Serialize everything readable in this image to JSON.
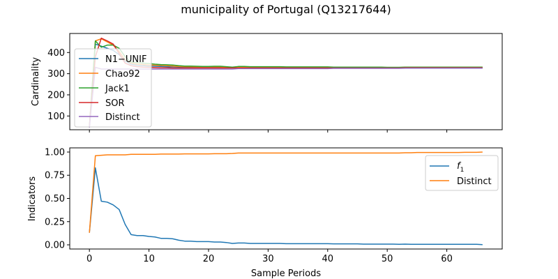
{
  "chart_data": {
    "type": "line",
    "title": "municipality of Portugal (Q13217644)",
    "xlabel": "Sample Periods",
    "xlim": [
      -3.3,
      69.3
    ],
    "xticks": [
      0,
      10,
      20,
      30,
      40,
      50,
      60
    ],
    "x": [
      0,
      1,
      2,
      3,
      4,
      5,
      6,
      7,
      8,
      9,
      10,
      11,
      12,
      13,
      14,
      15,
      16,
      17,
      18,
      19,
      20,
      21,
      22,
      23,
      24,
      25,
      26,
      27,
      28,
      29,
      30,
      31,
      32,
      33,
      34,
      35,
      36,
      37,
      38,
      39,
      40,
      41,
      42,
      43,
      44,
      45,
      46,
      47,
      48,
      49,
      50,
      51,
      52,
      53,
      54,
      55,
      56,
      57,
      58,
      59,
      60,
      61,
      62,
      63,
      64,
      65,
      66
    ],
    "panels": [
      {
        "ylabel": "Cardinality",
        "ylim": [
          35,
          490
        ],
        "yticks": [
          100,
          200,
          300,
          400
        ],
        "legend_position": "left",
        "series": [
          {
            "name": "N1−UNIF",
            "color": "#1f77b4",
            "values": [
              50,
              440,
              430,
              420,
              410,
              390,
              360,
              345,
              340,
              338,
              336,
              335,
              334,
              333,
              332,
              331,
              330,
              330,
              329,
              329,
              329,
              329,
              329,
              328,
              328,
              329,
              329,
              329,
              329,
              329,
              329,
              329,
              329,
              328,
              328,
              328,
              328,
              328,
              328,
              328,
              328,
              328,
              327,
              327,
              327,
              327,
              327,
              327,
              327,
              327,
              327,
              327,
              327,
              328,
              328,
              328,
              328,
              328,
              328,
              328,
              328,
              328,
              328,
              328,
              328,
              328,
              328
            ]
          },
          {
            "name": "Chao92",
            "color": "#ff7f0e",
            "values": [
              50,
              455,
              465,
              450,
              435,
              405,
              365,
              350,
              345,
              343,
              341,
              340,
              339,
              338,
              336,
              334,
              333,
              333,
              332,
              332,
              332,
              332,
              332,
              330,
              330,
              331,
              331,
              331,
              331,
              331,
              331,
              331,
              331,
              330,
              330,
              330,
              330,
              330,
              330,
              330,
              330,
              330,
              329,
              329,
              329,
              329,
              329,
              329,
              329,
              329,
              329,
              329,
              329,
              330,
              330,
              330,
              330,
              330,
              330,
              330,
              330,
              330,
              330,
              330,
              330,
              330,
              330
            ]
          },
          {
            "name": "Jack1",
            "color": "#2ca02c",
            "values": [
              50,
              455,
              425,
              435,
              435,
              420,
              380,
              355,
              352,
              350,
              348,
              345,
              343,
              342,
              341,
              338,
              336,
              336,
              335,
              334,
              334,
              335,
              335,
              333,
              331,
              334,
              334,
              333,
              333,
              333,
              333,
              333,
              333,
              332,
              332,
              332,
              332,
              332,
              332,
              332,
              332,
              331,
              331,
              331,
              331,
              331,
              331,
              331,
              331,
              331,
              330,
              330,
              330,
              331,
              331,
              331,
              331,
              331,
              331,
              331,
              331,
              331,
              331,
              331,
              331,
              331,
              331
            ]
          },
          {
            "name": "SOR",
            "color": "#d62728",
            "values": [
              50,
              380,
              468,
              455,
              440,
              395,
              350,
              338,
              333,
              331,
              330,
              329,
              328,
              328,
              327,
              327,
              327,
              327,
              327,
              327,
              327,
              327,
              327,
              327,
              327,
              327,
              327,
              327,
              327,
              327,
              327,
              327,
              327,
              327,
              327,
              327,
              327,
              327,
              327,
              327,
              327,
              327,
              327,
              327,
              327,
              327,
              327,
              327,
              327,
              327,
              327,
              327,
              327,
              328,
              328,
              328,
              328,
              328,
              328,
              328,
              328,
              328,
              328,
              328,
              328,
              328,
              328
            ]
          },
          {
            "name": "Distinct",
            "color": "#9467bd",
            "values": [
              45,
              330,
              322,
              322,
              322,
              322,
              322,
              322,
              322,
              322,
              322,
              322,
              322,
              322,
              322,
              322,
              322,
              322,
              322,
              322,
              322,
              322,
              322,
              322,
              322,
              324,
              324,
              324,
              324,
              324,
              324,
              324,
              324,
              324,
              324,
              324,
              324,
              324,
              324,
              324,
              324,
              325,
              325,
              325,
              325,
              325,
              325,
              325,
              325,
              325,
              325,
              325,
              325,
              326,
              326,
              326,
              326,
              326,
              326,
              326,
              326,
              326,
              326,
              326,
              326,
              326,
              326
            ]
          }
        ]
      },
      {
        "ylabel": "Indicators",
        "ylim": [
          -0.045,
          1.045
        ],
        "yticks": [
          0.0,
          0.25,
          0.5,
          0.75,
          1.0
        ],
        "ytick_labels": [
          "0.00",
          "0.25",
          "0.50",
          "0.75",
          "1.00"
        ],
        "legend_position": "top-right",
        "series": [
          {
            "name": "f1",
            "label_base": "f",
            "label_sub": "1",
            "color": "#1f77b4",
            "values": [
              0.13,
              0.83,
              0.47,
              0.46,
              0.43,
              0.38,
              0.22,
              0.11,
              0.1,
              0.1,
              0.09,
              0.085,
              0.07,
              0.07,
              0.065,
              0.05,
              0.04,
              0.04,
              0.035,
              0.035,
              0.035,
              0.03,
              0.03,
              0.025,
              0.015,
              0.02,
              0.02,
              0.015,
              0.015,
              0.015,
              0.015,
              0.015,
              0.015,
              0.012,
              0.012,
              0.012,
              0.012,
              0.012,
              0.012,
              0.012,
              0.012,
              0.01,
              0.01,
              0.01,
              0.01,
              0.01,
              0.008,
              0.008,
              0.008,
              0.008,
              0.008,
              0.008,
              0.006,
              0.008,
              0.006,
              0.006,
              0.006,
              0.006,
              0.006,
              0.006,
              0.006,
              0.006,
              0.006,
              0.006,
              0.006,
              0.006,
              0.002
            ]
          },
          {
            "name": "Distinct",
            "color": "#ff7f0e",
            "values": [
              0.13,
              0.96,
              0.965,
              0.97,
              0.97,
              0.97,
              0.97,
              0.975,
              0.975,
              0.975,
              0.975,
              0.975,
              0.978,
              0.978,
              0.978,
              0.978,
              0.98,
              0.98,
              0.98,
              0.98,
              0.98,
              0.982,
              0.982,
              0.982,
              0.985,
              0.99,
              0.99,
              0.99,
              0.99,
              0.99,
              0.99,
              0.99,
              0.99,
              0.99,
              0.99,
              0.99,
              0.99,
              0.99,
              0.99,
              0.99,
              0.99,
              0.99,
              0.99,
              0.99,
              0.99,
              0.99,
              0.99,
              0.99,
              0.99,
              0.99,
              0.99,
              0.99,
              0.99,
              0.992,
              0.992,
              0.995,
              0.995,
              0.995,
              0.995,
              0.995,
              0.995,
              0.995,
              0.995,
              0.997,
              0.997,
              0.997,
              1.0
            ]
          }
        ]
      }
    ]
  }
}
